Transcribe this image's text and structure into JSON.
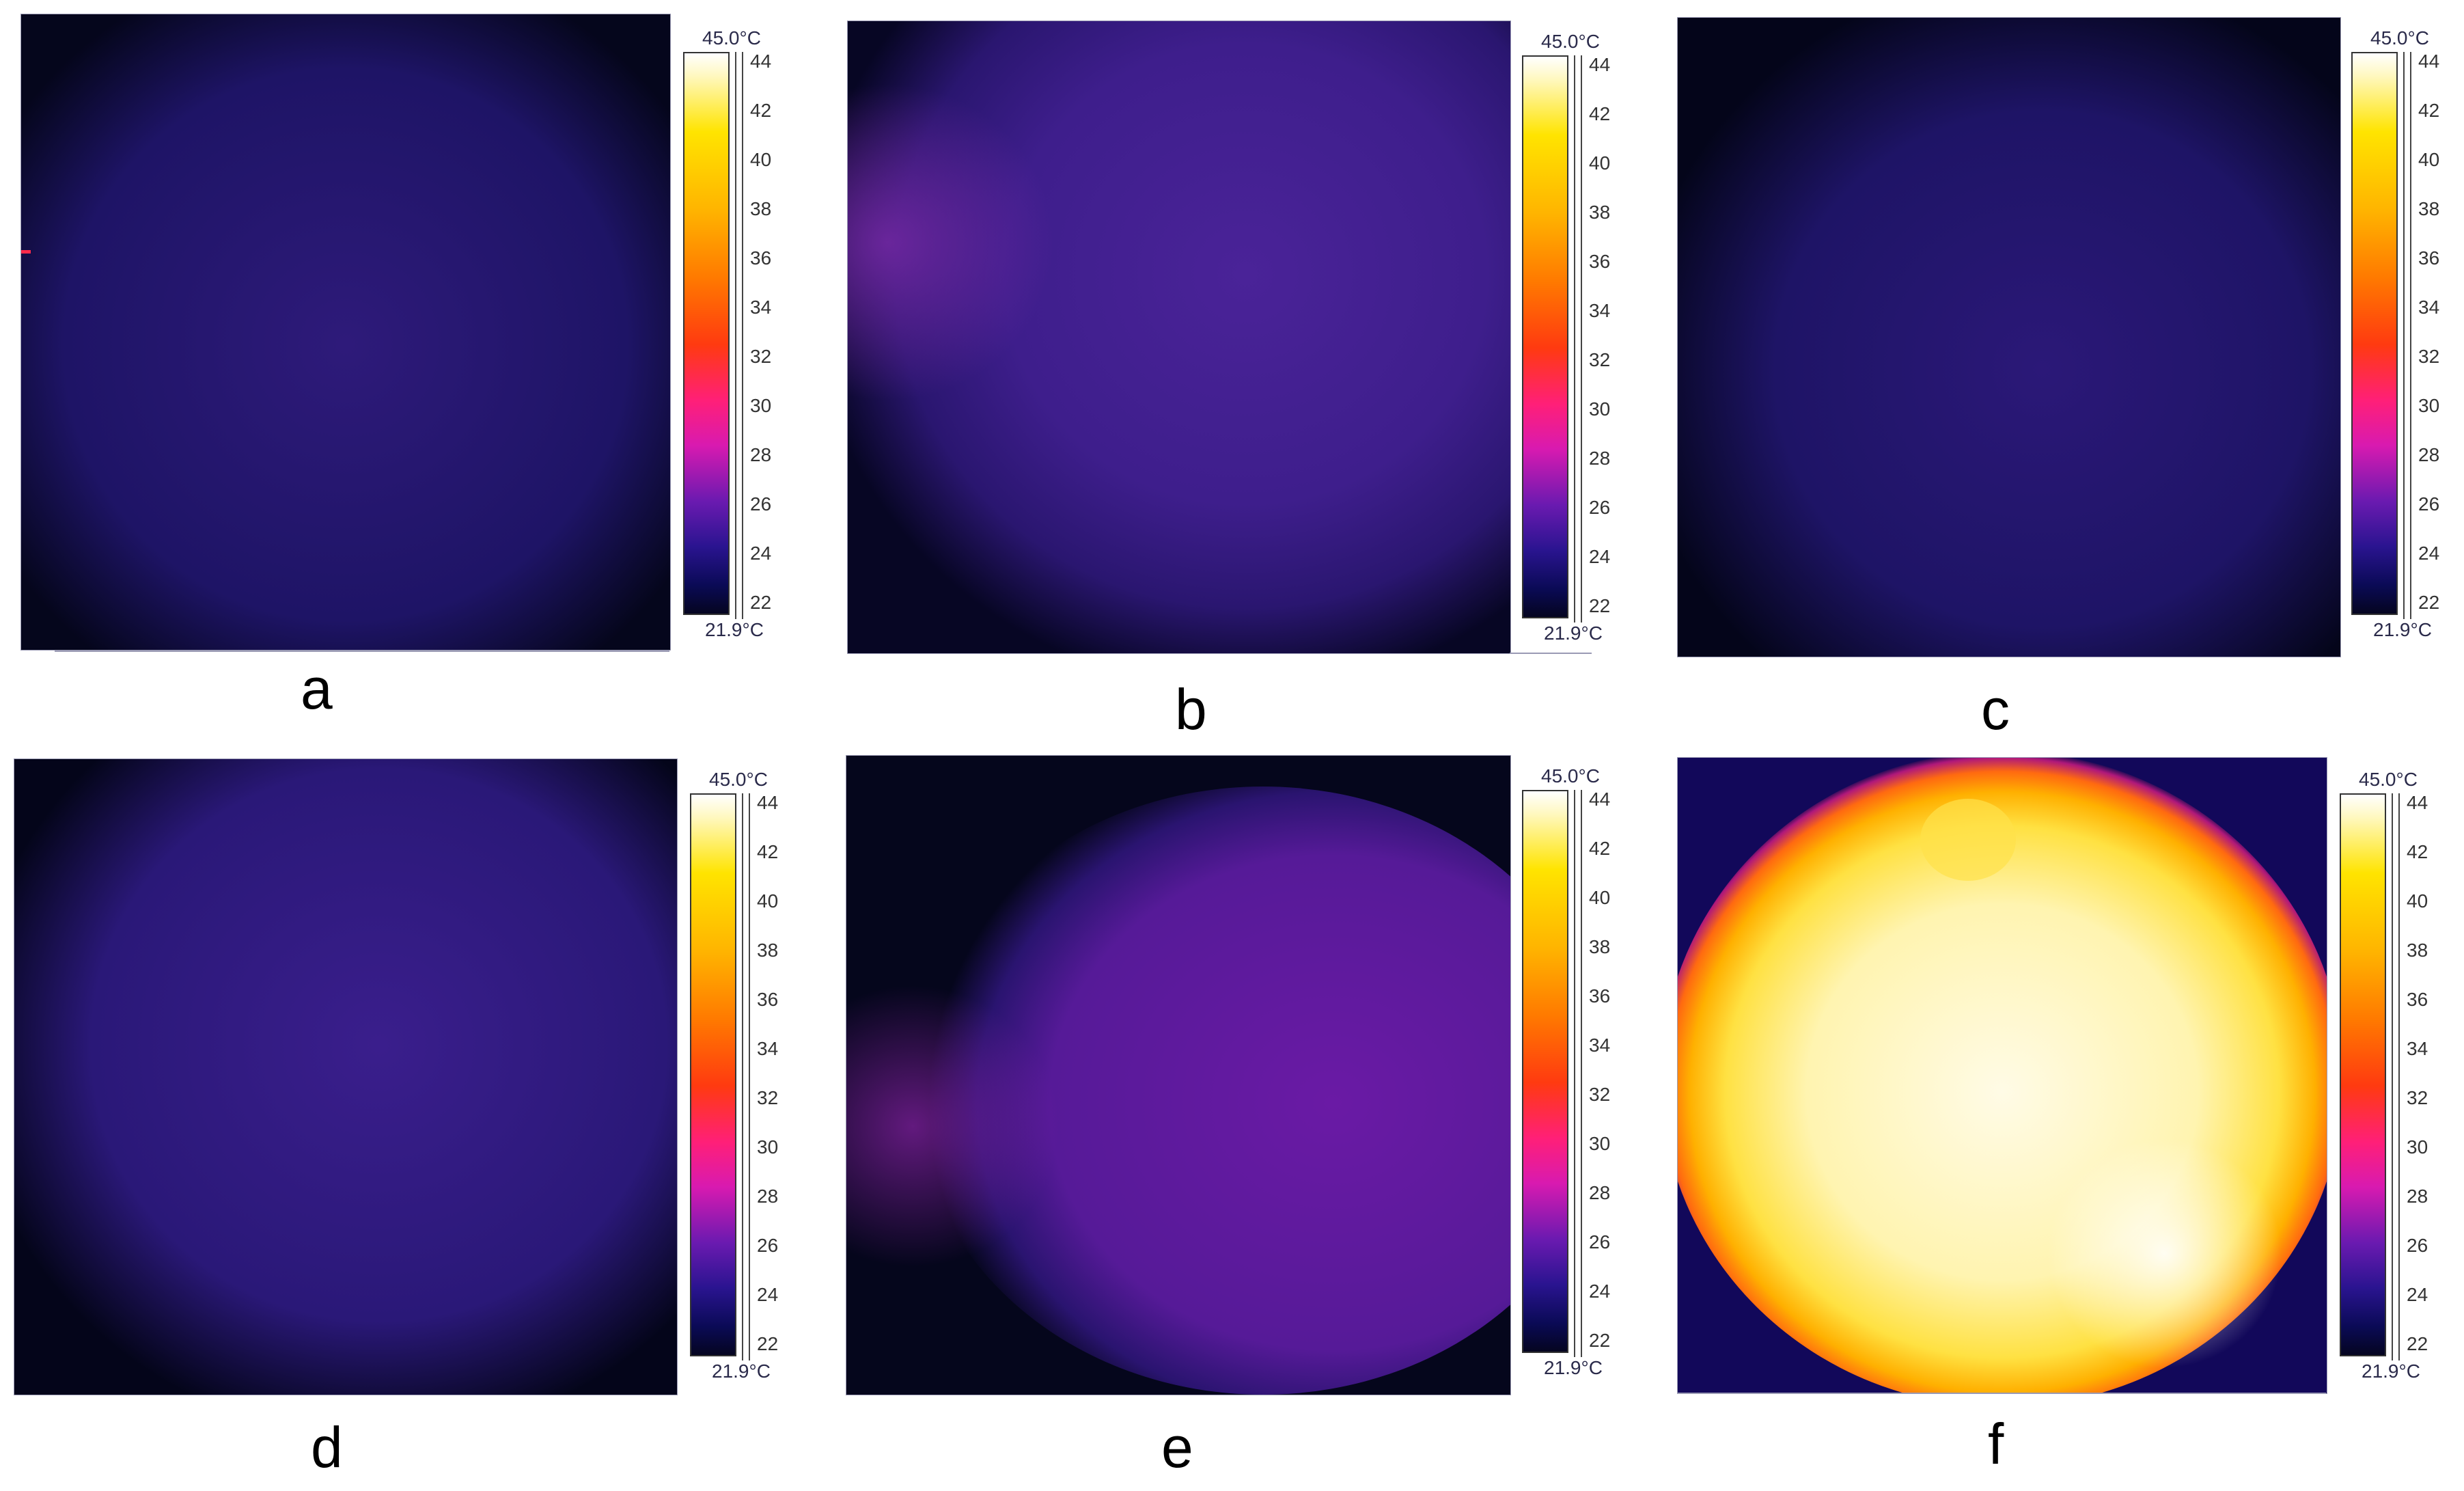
{
  "colors": {
    "cold": "#0d0a55",
    "cool_purple": "#3a1e8c",
    "warm_purple": "#6a1aa5",
    "hot_yellow": "#ffe55a",
    "hot_white": "#fffbe6",
    "edge_orange": "#ff7a12",
    "background": "#000000"
  },
  "colorbar": {
    "max_label": "45.0°C",
    "min_label": "21.9°C",
    "ticks": [
      "44",
      "42",
      "40",
      "38",
      "36",
      "34",
      "32",
      "30",
      "28",
      "26",
      "24",
      "22"
    ]
  },
  "panels": [
    {
      "label": "a",
      "state": "cool"
    },
    {
      "label": "b",
      "state": "slightly-warm"
    },
    {
      "label": "c",
      "state": "cool"
    },
    {
      "label": "d",
      "state": "cool"
    },
    {
      "label": "e",
      "state": "warm-purple"
    },
    {
      "label": "f",
      "state": "hot"
    }
  ]
}
